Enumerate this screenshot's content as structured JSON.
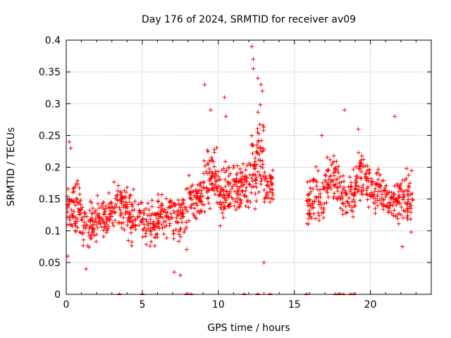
{
  "chart_data": {
    "type": "scatter",
    "title": "Day 176 of 2024, SRMTID for receiver av09",
    "xlabel": "GPS time / hours",
    "ylabel": "SRMTID / TECUs",
    "xlim": [
      0,
      24
    ],
    "ylim": [
      0,
      0.4
    ],
    "x_ticks": [
      0,
      5,
      10,
      15,
      20
    ],
    "y_ticks": [
      0,
      0.05,
      0.1,
      0.15,
      0.2,
      0.25,
      0.3,
      0.35,
      0.4
    ],
    "x_tick_labels": [
      "0",
      "5",
      "10",
      "15",
      "20"
    ],
    "y_tick_labels": [
      "0",
      "0.05",
      "0.1",
      "0.15",
      "0.2",
      "0.25",
      "0.3",
      "0.35",
      "0.4"
    ],
    "grid": true,
    "marker": "+",
    "marker_color": "#ff0000",
    "data_gap_hours": [
      13.6,
      15.8
    ],
    "series": [
      {
        "name": "SRMTID",
        "segments": [
          {
            "x_start": 0.0,
            "x_end": 1.0,
            "base": 0.13,
            "spread": 0.06,
            "n": 70
          },
          {
            "x_start": 1.0,
            "x_end": 2.0,
            "base": 0.11,
            "spread": 0.05,
            "n": 60
          },
          {
            "x_start": 2.0,
            "x_end": 3.0,
            "base": 0.12,
            "spread": 0.05,
            "n": 60
          },
          {
            "x_start": 3.0,
            "x_end": 4.0,
            "base": 0.14,
            "spread": 0.05,
            "n": 60
          },
          {
            "x_start": 4.0,
            "x_end": 5.0,
            "base": 0.12,
            "spread": 0.05,
            "n": 60
          },
          {
            "x_start": 5.0,
            "x_end": 6.0,
            "base": 0.11,
            "spread": 0.05,
            "n": 60
          },
          {
            "x_start": 6.0,
            "x_end": 7.0,
            "base": 0.13,
            "spread": 0.05,
            "n": 60
          },
          {
            "x_start": 7.0,
            "x_end": 8.0,
            "base": 0.12,
            "spread": 0.06,
            "n": 60
          },
          {
            "x_start": 8.0,
            "x_end": 9.0,
            "base": 0.15,
            "spread": 0.05,
            "n": 60
          },
          {
            "x_start": 9.0,
            "x_end": 10.0,
            "base": 0.18,
            "spread": 0.07,
            "n": 70
          },
          {
            "x_start": 10.0,
            "x_end": 11.0,
            "base": 0.16,
            "spread": 0.06,
            "n": 70
          },
          {
            "x_start": 11.0,
            "x_end": 12.0,
            "base": 0.17,
            "spread": 0.06,
            "n": 70
          },
          {
            "x_start": 12.0,
            "x_end": 12.5,
            "base": 0.19,
            "spread": 0.08,
            "n": 40
          },
          {
            "x_start": 12.5,
            "x_end": 13.0,
            "base": 0.22,
            "spread": 0.09,
            "n": 40
          },
          {
            "x_start": 13.0,
            "x_end": 13.6,
            "base": 0.17,
            "spread": 0.06,
            "n": 40
          },
          {
            "x_start": 15.8,
            "x_end": 17.0,
            "base": 0.15,
            "spread": 0.06,
            "n": 70
          },
          {
            "x_start": 17.0,
            "x_end": 18.0,
            "base": 0.18,
            "spread": 0.05,
            "n": 60
          },
          {
            "x_start": 18.0,
            "x_end": 19.0,
            "base": 0.16,
            "spread": 0.06,
            "n": 60
          },
          {
            "x_start": 19.0,
            "x_end": 20.0,
            "base": 0.18,
            "spread": 0.06,
            "n": 60
          },
          {
            "x_start": 20.0,
            "x_end": 21.0,
            "base": 0.16,
            "spread": 0.05,
            "n": 60
          },
          {
            "x_start": 21.0,
            "x_end": 22.0,
            "base": 0.15,
            "spread": 0.05,
            "n": 60
          },
          {
            "x_start": 22.0,
            "x_end": 22.8,
            "base": 0.15,
            "spread": 0.06,
            "n": 50
          }
        ],
        "outliers": [
          {
            "x": 0.2,
            "y": 0.24
          },
          {
            "x": 0.3,
            "y": 0.23
          },
          {
            "x": 0.1,
            "y": 0.06
          },
          {
            "x": 1.3,
            "y": 0.04
          },
          {
            "x": 7.1,
            "y": 0.035
          },
          {
            "x": 7.5,
            "y": 0.03
          },
          {
            "x": 9.1,
            "y": 0.33
          },
          {
            "x": 9.5,
            "y": 0.29
          },
          {
            "x": 10.4,
            "y": 0.31
          },
          {
            "x": 10.5,
            "y": 0.28
          },
          {
            "x": 12.2,
            "y": 0.39
          },
          {
            "x": 12.3,
            "y": 0.37
          },
          {
            "x": 12.3,
            "y": 0.355
          },
          {
            "x": 12.6,
            "y": 0.34
          },
          {
            "x": 12.8,
            "y": 0.33
          },
          {
            "x": 12.9,
            "y": 0.32
          },
          {
            "x": 13.0,
            "y": 0.05
          },
          {
            "x": 16.8,
            "y": 0.25
          },
          {
            "x": 18.3,
            "y": 0.29
          },
          {
            "x": 19.2,
            "y": 0.26
          },
          {
            "x": 21.6,
            "y": 0.28
          },
          {
            "x": 22.1,
            "y": 0.075
          }
        ],
        "zero_points_x": [
          3.5,
          5.0,
          7.9,
          8.2,
          11.7,
          12.6,
          13.4,
          15.8,
          17.7,
          17.9,
          18.2,
          18.7,
          18.9
        ]
      }
    ]
  }
}
